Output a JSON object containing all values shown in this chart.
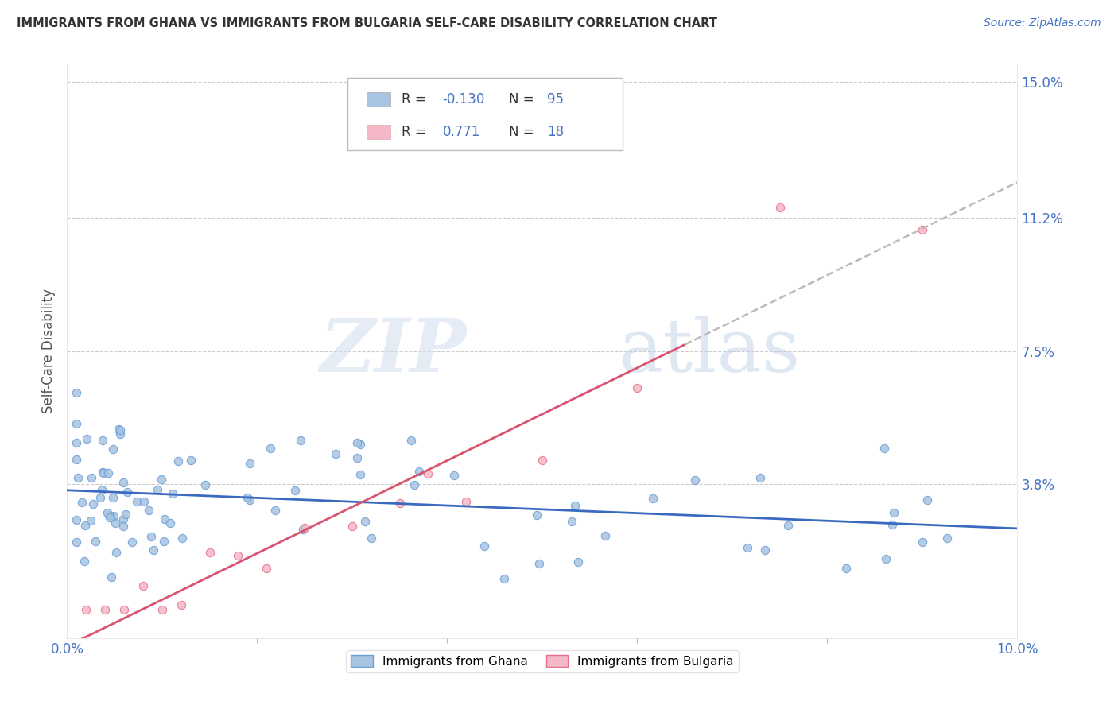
{
  "title": "IMMIGRANTS FROM GHANA VS IMMIGRANTS FROM BULGARIA SELF-CARE DISABILITY CORRELATION CHART",
  "source": "Source: ZipAtlas.com",
  "ylabel": "Self-Care Disability",
  "legend_label_ghana": "Immigrants from Ghana",
  "legend_label_bulgaria": "Immigrants from Bulgaria",
  "ghana_R": -0.13,
  "ghana_N": 95,
  "bulgaria_R": 0.771,
  "bulgaria_N": 18,
  "ghana_color": "#a8c4e0",
  "ghana_edge": "#6a9fd8",
  "bulgaria_color": "#f5b8c8",
  "bulgaria_edge": "#e8708a",
  "trend_ghana_color": "#3a6abf",
  "trend_bulgaria_color": "#d9546e",
  "xlim": [
    0.0,
    0.1
  ],
  "ylim": [
    -0.005,
    0.155
  ],
  "ytick_vals": [
    0.038,
    0.075,
    0.112,
    0.15
  ],
  "ytick_labels": [
    "3.8%",
    "7.5%",
    "11.2%",
    "15.0%"
  ],
  "watermark_zip": "ZIP",
  "watermark_atlas": "atlas",
  "background_color": "#ffffff"
}
